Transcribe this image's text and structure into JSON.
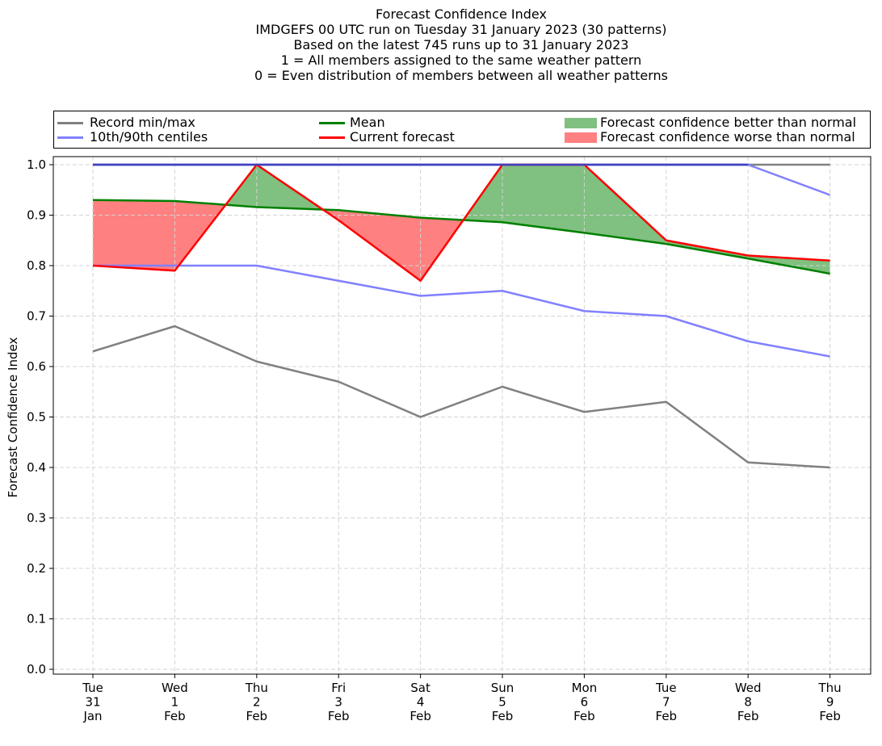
{
  "title_lines": [
    "Forecast Confidence Index",
    "IMDGEFS 00 UTC run on Tuesday 31 January 2023 (30 patterns)",
    "Based on the latest 745 runs up to 31 January 2023",
    "1 = All members assigned to the same weather pattern",
    "0 = Even distribution of members between all weather patterns"
  ],
  "legend": {
    "record": "Record min/max",
    "centiles": "10th/90th centiles",
    "mean": "Mean",
    "current": "Current forecast",
    "better": "Forecast confidence better than normal",
    "worse": "Forecast confidence worse than normal"
  },
  "colors": {
    "record": "#808080",
    "centiles": "#8080ff",
    "mean": "#008000",
    "current": "#ff0000",
    "better": "#80c080",
    "worse": "#ff8080",
    "centile_upper_dark": "#4040c0"
  },
  "chart_data": {
    "type": "line",
    "ylabel": "Forecast Confidence Index",
    "ylim": [
      0,
      1
    ],
    "yticks": [
      "0.0",
      "0.1",
      "0.2",
      "0.3",
      "0.4",
      "0.5",
      "0.6",
      "0.7",
      "0.8",
      "0.9",
      "1.0"
    ],
    "grid": true,
    "legend_position": "top",
    "x": [
      [
        "Tue",
        "31",
        "Jan"
      ],
      [
        "Wed",
        "1",
        "Feb"
      ],
      [
        "Thu",
        "2",
        "Feb"
      ],
      [
        "Fri",
        "3",
        "Feb"
      ],
      [
        "Sat",
        "4",
        "Feb"
      ],
      [
        "Sun",
        "5",
        "Feb"
      ],
      [
        "Mon",
        "6",
        "Feb"
      ],
      [
        "Tue",
        "7",
        "Feb"
      ],
      [
        "Wed",
        "8",
        "Feb"
      ],
      [
        "Thu",
        "9",
        "Feb"
      ]
    ],
    "series": [
      {
        "name": "Record min/max",
        "key": "record_min",
        "values": [
          0.63,
          0.68,
          0.61,
          0.57,
          0.5,
          0.56,
          0.51,
          0.53,
          0.41,
          0.4
        ]
      },
      {
        "name": "Record min/max",
        "key": "record_max",
        "values": [
          1.0,
          1.0,
          1.0,
          1.0,
          1.0,
          1.0,
          1.0,
          1.0,
          1.0,
          1.0
        ]
      },
      {
        "name": "10th/90th centiles",
        "key": "p10",
        "values": [
          0.8,
          0.8,
          0.8,
          0.77,
          0.74,
          0.75,
          0.71,
          0.7,
          0.65,
          0.62
        ]
      },
      {
        "name": "10th/90th centiles",
        "key": "p90",
        "values": [
          1.0,
          1.0,
          1.0,
          1.0,
          1.0,
          1.0,
          1.0,
          1.0,
          1.0,
          0.94
        ]
      },
      {
        "name": "Mean",
        "key": "mean",
        "values": [
          0.93,
          0.928,
          0.916,
          0.91,
          0.895,
          0.886,
          0.865,
          0.843,
          0.814,
          0.784
        ]
      },
      {
        "name": "Current forecast",
        "key": "current",
        "values": [
          0.8,
          0.79,
          1.0,
          0.89,
          0.77,
          1.0,
          1.0,
          0.85,
          0.82,
          0.81
        ]
      }
    ]
  }
}
